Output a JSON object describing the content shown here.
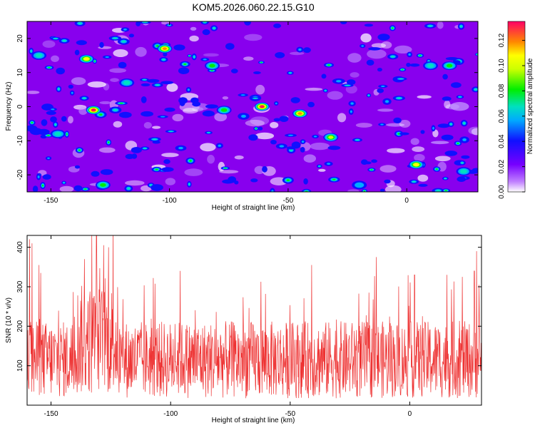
{
  "chart_data": [
    {
      "type": "heatmap",
      "title": "KOM5.2026.060.22.15.G10",
      "xlabel": "Height of straight line (km)",
      "ylabel": "Frequency (Hz)",
      "xlim": [
        -160,
        30
      ],
      "ylim": [
        -25,
        25
      ],
      "xticks": [
        -150,
        -100,
        -50,
        0
      ],
      "yticks": [
        -20,
        -10,
        0,
        10,
        20
      ],
      "colorbar": {
        "label": "Normalized spectral amplitude",
        "range": [
          0,
          0.135
        ],
        "ticks": [
          "0.00",
          "0.02",
          "0.04",
          "0.06",
          "0.08",
          "0.10",
          "0.12"
        ]
      },
      "peaks": [
        {
          "x": -132,
          "y": -1,
          "z": 0.13
        },
        {
          "x": -135,
          "y": 14,
          "z": 0.11
        },
        {
          "x": -102,
          "y": 17,
          "z": 0.12
        },
        {
          "x": -61,
          "y": 0,
          "z": 0.13
        },
        {
          "x": -45,
          "y": -2,
          "z": 0.12
        },
        {
          "x": -32,
          "y": -9,
          "z": 0.1
        },
        {
          "x": 4,
          "y": -17,
          "z": 0.11
        },
        {
          "x": -128,
          "y": -23,
          "z": 0.09
        },
        {
          "x": -82,
          "y": 12,
          "z": 0.09
        },
        {
          "x": 18,
          "y": 12,
          "z": 0.08
        },
        {
          "x": -118,
          "y": 7,
          "z": 0.07
        },
        {
          "x": -155,
          "y": 15,
          "z": 0.07
        },
        {
          "x": -77,
          "y": -1,
          "z": 0.08
        },
        {
          "x": 10,
          "y": 12,
          "z": 0.07
        },
        {
          "x": 24,
          "y": -19,
          "z": 0.07
        },
        {
          "x": -20,
          "y": -23,
          "z": 0.06
        },
        {
          "x": -147,
          "y": -8,
          "z": 0.07
        }
      ]
    },
    {
      "type": "line",
      "xlabel": "Height of straight line (km)",
      "ylabel": "SNR (10 * v/v)",
      "xlim": [
        -160,
        30
      ],
      "ylim": [
        0,
        430
      ],
      "xticks": [
        -150,
        -100,
        -50,
        0
      ],
      "yticks": [
        100,
        200,
        300,
        400
      ],
      "color": "#ee3333",
      "baseline": 115,
      "spikes": [
        {
          "x": -159,
          "y": 420
        },
        {
          "x": -158,
          "y": 410
        },
        {
          "x": -133,
          "y": 430
        },
        {
          "x": -131,
          "y": 430
        },
        {
          "x": -128,
          "y": 405
        },
        {
          "x": -126,
          "y": 400
        },
        {
          "x": -136,
          "y": 370
        },
        {
          "x": -155,
          "y": 355
        },
        {
          "x": -41,
          "y": 355
        },
        {
          "x": -14,
          "y": 375
        },
        {
          "x": 28,
          "y": 390
        },
        {
          "x": -96,
          "y": 340
        },
        {
          "x": 27,
          "y": 340
        },
        {
          "x": 2,
          "y": 330
        },
        {
          "x": 22,
          "y": 325
        }
      ]
    }
  ]
}
